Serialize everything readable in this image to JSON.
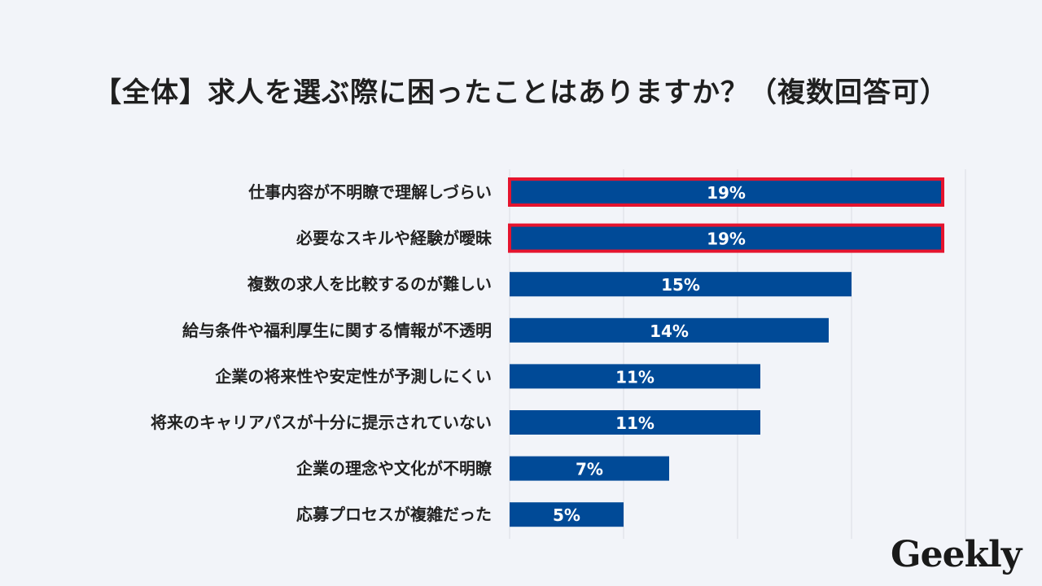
{
  "title": "【全体】求人を選ぶ際に困ったことはありますか？（複数回答可）",
  "logo": "Geekly",
  "colors": {
    "bar": "#004a97",
    "highlight_border": "#e5142e",
    "grid": "#d9dce3",
    "label_text": "#222222",
    "value_text": "#ffffff",
    "background": "#f2f4f9"
  },
  "chart_data": {
    "type": "bar",
    "orientation": "horizontal",
    "categories": [
      "仕事内容が不明瞭で理解しづらい",
      "必要なスキルや経験が曖昧",
      "複数の求人を比較するのが難しい",
      "給与条件や福利厚生に関する情報が不透明",
      "企業の将来性や安定性が予測しにくい",
      "将来のキャリアパスが十分に提示されていない",
      "企業の理念や文化が不明瞭",
      "応募プロセスが複雑だった"
    ],
    "values": [
      19,
      19,
      15,
      14,
      11,
      11,
      7,
      5
    ],
    "value_labels": [
      "19%",
      "19%",
      "15%",
      "14%",
      "11%",
      "11%",
      "7%",
      "5%"
    ],
    "highlighted": [
      true,
      true,
      false,
      false,
      false,
      false,
      false,
      false
    ],
    "xlim": [
      0,
      20
    ],
    "grid": true,
    "unit": "%"
  }
}
